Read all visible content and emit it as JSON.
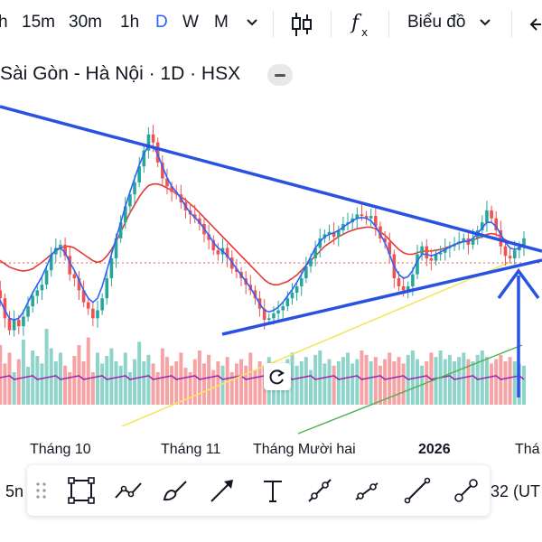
{
  "toolbar_top": {
    "timeframes": [
      "h",
      "15m",
      "30m",
      "1h",
      "D",
      "W",
      "M"
    ],
    "active": "D",
    "chart_type_label": "Biểu đồ"
  },
  "symbol": {
    "title": "Sài Gòn - Hà Nội · 1D · HSX"
  },
  "xaxis": {
    "labels": [
      "Tháng 10",
      "Tháng 11",
      "Tháng Mười hai",
      "2026",
      "Thá"
    ]
  },
  "bottom_bar": {
    "left_edge_text": "5n",
    "right_edge_text": "32 (UT",
    "tools": [
      "drag-handle-icon",
      "rectangle-icon",
      "path-icon",
      "brush-icon",
      "arrow-icon",
      "text-icon",
      "price-range-icon",
      "date-range-icon",
      "trend-line-icon",
      "measure-icon"
    ]
  },
  "chart_data": {
    "type": "candlestick",
    "title": "Sài Gòn - Hà Nội · 1D · HSX",
    "xlabel": "",
    "ylabel": "",
    "x_ticks": [
      "Tháng 10",
      "Tháng 11",
      "Tháng Mười hai",
      "2026",
      "Thá"
    ],
    "close": [
      62,
      55,
      45,
      20,
      5,
      18,
      10,
      22,
      35,
      48,
      55,
      62,
      80,
      100,
      108,
      112,
      98,
      75,
      70,
      55,
      40,
      32,
      20,
      30,
      45,
      70,
      95,
      120,
      140,
      160,
      175,
      190,
      210,
      230,
      250,
      240,
      215,
      195,
      185,
      178,
      175,
      165,
      155,
      150,
      145,
      138,
      125,
      118,
      105,
      100,
      108,
      96,
      82,
      78,
      70,
      62,
      55,
      45,
      32,
      18,
      20,
      26,
      30,
      35,
      45,
      52,
      60,
      70,
      85,
      95,
      108,
      120,
      125,
      128,
      122,
      130,
      138,
      140,
      145,
      150,
      148,
      145,
      148,
      135,
      120,
      115,
      100,
      70,
      60,
      55,
      60,
      75,
      100,
      110,
      95,
      92,
      100,
      102,
      108,
      110,
      113,
      116,
      120,
      112,
      120,
      130,
      140,
      155,
      145,
      130,
      110,
      98,
      95,
      105,
      110,
      120
    ],
    "sma_fast": [
      60,
      52,
      42,
      30,
      20,
      18,
      20,
      28,
      40,
      52,
      62,
      72,
      85,
      98,
      106,
      108,
      102,
      90,
      80,
      68,
      55,
      45,
      40,
      45,
      60,
      80,
      100,
      120,
      140,
      160,
      178,
      195,
      212,
      226,
      236,
      235,
      225,
      210,
      196,
      185,
      178,
      170,
      160,
      152,
      146,
      140,
      132,
      124,
      115,
      108,
      104,
      98,
      90,
      82,
      74,
      66,
      58,
      48,
      38,
      30,
      28,
      30,
      34,
      40,
      48,
      56,
      65,
      75,
      86,
      97,
      108,
      116,
      122,
      125,
      127,
      130,
      134,
      138,
      142,
      145,
      146,
      145,
      142,
      135,
      125,
      115,
      100,
      85,
      75,
      70,
      72,
      80,
      92,
      100,
      100,
      98,
      100,
      103,
      106,
      109,
      112,
      115,
      116,
      116,
      120,
      126,
      133,
      140,
      140,
      135,
      125,
      115,
      108,
      106,
      108,
      112
    ],
    "sma_mid": [
      100,
      96,
      92,
      88,
      84,
      82,
      80,
      79,
      80,
      82,
      86,
      90,
      95,
      100,
      104,
      108,
      110,
      110,
      108,
      104,
      100,
      96,
      92,
      90,
      92,
      98,
      106,
      116,
      128,
      140,
      152,
      162,
      172,
      180,
      186,
      188,
      188,
      186,
      183,
      180,
      176,
      172,
      168,
      163,
      158,
      152,
      146,
      140,
      134,
      128,
      122,
      116,
      110,
      104,
      98,
      92,
      86,
      80,
      74,
      68,
      64,
      62,
      62,
      64,
      66,
      70,
      74,
      80,
      86,
      92,
      98,
      104,
      110,
      114,
      118,
      122,
      125,
      128,
      130,
      132,
      133,
      134,
      134,
      132,
      128,
      124,
      118,
      112,
      106,
      102,
      100,
      100,
      102,
      104,
      104,
      104,
      105,
      106,
      108,
      110,
      112,
      114,
      116,
      117,
      118,
      120,
      122,
      125,
      126,
      125,
      122,
      118,
      115,
      113,
      112,
      112
    ],
    "ma200_points": [
      [
        0.22,
        0.2
      ],
      [
        0.9,
        0.55
      ]
    ],
    "volume": [
      40,
      30,
      55,
      38,
      48,
      30,
      42,
      60,
      35,
      50,
      45,
      38,
      70,
      52,
      40,
      48,
      36,
      30,
      45,
      55,
      40,
      62,
      30,
      48,
      38,
      45,
      52,
      40,
      36,
      48,
      30,
      42,
      58,
      40,
      46,
      38,
      30,
      52,
      44,
      36,
      40,
      48,
      34,
      30,
      42,
      50,
      38,
      46,
      32,
      40,
      36,
      44,
      30,
      38,
      42,
      36,
      48,
      32,
      40,
      36,
      44,
      30,
      38,
      35,
      42,
      48,
      36,
      40,
      44,
      32,
      46,
      50,
      38,
      42,
      36,
      40,
      44,
      48,
      38,
      42,
      50,
      46,
      40,
      44,
      36,
      42,
      48,
      40,
      44,
      38,
      46,
      50,
      42,
      36,
      40,
      48,
      44,
      50,
      42,
      46,
      40,
      44,
      48,
      42,
      40,
      46,
      50,
      44,
      38,
      42,
      46,
      40,
      44,
      40,
      38,
      36
    ],
    "annotations": [
      "descending trendline",
      "ascending trendline",
      "breakout arrow"
    ]
  }
}
